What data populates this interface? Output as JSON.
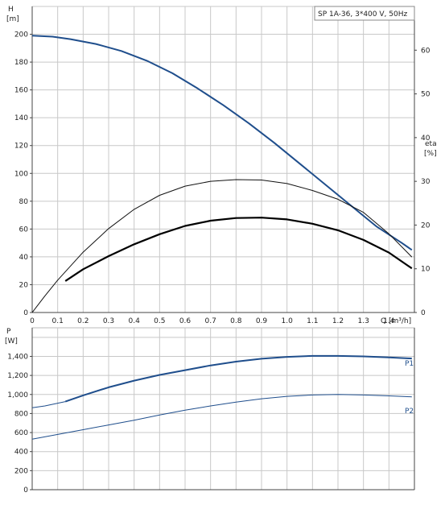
{
  "chart_data": [
    {
      "type": "line",
      "title": "SP 1A-36, 3*400 V, 50Hz",
      "xlabel": "Q [m³/h]",
      "ylabel": [
        "H",
        "[m]"
      ],
      "ylabel_right": [
        "eta",
        "[%]"
      ],
      "xlim": [
        0,
        1.5
      ],
      "ylim": [
        0,
        220
      ],
      "ylim_right": [
        0,
        70
      ],
      "xticks": [
        "0",
        "0.1",
        "0.2",
        "0.3",
        "0.4",
        "0.5",
        "0.6",
        "0.7",
        "0.8",
        "0.9",
        "1.0",
        "1.1",
        "1.2",
        "1.3",
        "1.4"
      ],
      "yticks": [
        "0",
        "20",
        "40",
        "60",
        "80",
        "100",
        "120",
        "140",
        "160",
        "180",
        "200"
      ],
      "yticks_right": [
        "0",
        "10",
        "20",
        "30",
        "40",
        "50",
        "60"
      ],
      "grid": true,
      "series": [
        {
          "axis": "left",
          "color": "#1f4e8c",
          "width": 2,
          "x": [
            0,
            0.08,
            0.15,
            0.25,
            0.35,
            0.45,
            0.55,
            0.65,
            0.75,
            0.85,
            0.95,
            1.05,
            1.15,
            1.25,
            1.35,
            1.45,
            1.49
          ],
          "y": [
            199,
            198.3,
            196.5,
            193,
            188,
            181,
            172,
            161,
            149,
            136,
            122,
            107,
            92,
            77,
            62,
            50,
            45
          ]
        },
        {
          "axis": "right",
          "color": "#111111",
          "width": 1,
          "x": [
            0,
            0.05,
            0.1,
            0.2,
            0.3,
            0.4,
            0.5,
            0.6,
            0.7,
            0.8,
            0.9,
            1.0,
            1.1,
            1.2,
            1.3,
            1.4,
            1.49
          ],
          "y": [
            0,
            3.8,
            7.4,
            13.8,
            19.2,
            23.6,
            26.8,
            28.9,
            30.0,
            30.4,
            30.3,
            29.5,
            27.9,
            25.9,
            22.9,
            18.0,
            12.7
          ]
        },
        {
          "axis": "right",
          "color": "#000000",
          "width": 2.2,
          "x": [
            0.13,
            0.2,
            0.3,
            0.4,
            0.5,
            0.6,
            0.7,
            0.8,
            0.9,
            1.0,
            1.1,
            1.2,
            1.3,
            1.4,
            1.49
          ],
          "y": [
            7.2,
            9.9,
            12.9,
            15.6,
            17.9,
            19.8,
            21.0,
            21.6,
            21.7,
            21.3,
            20.3,
            18.8,
            16.6,
            13.7,
            10.1
          ]
        }
      ]
    },
    {
      "type": "line",
      "ylabel": [
        "P",
        "[W]"
      ],
      "xlim": [
        0,
        1.5
      ],
      "ylim": [
        0,
        1700
      ],
      "yticks": [
        "0",
        "200",
        "400",
        "600",
        "800",
        "1,000",
        "1,200",
        "1,400"
      ],
      "grid": true,
      "series": [
        {
          "name": "P1",
          "color": "#1f4e8c",
          "width": 2,
          "x": [
            0.13,
            0.2,
            0.3,
            0.4,
            0.5,
            0.6,
            0.7,
            0.8,
            0.9,
            1.0,
            1.1,
            1.2,
            1.3,
            1.4,
            1.49
          ],
          "y": [
            925,
            990,
            1075,
            1145,
            1205,
            1255,
            1305,
            1345,
            1375,
            1395,
            1405,
            1405,
            1400,
            1390,
            1378
          ]
        },
        {
          "name": "P1",
          "color": "#1f4e8c",
          "width": 1,
          "x": [
            0,
            0.05,
            0.13
          ],
          "y": [
            860,
            880,
            925
          ]
        },
        {
          "name": "P2",
          "color": "#1f4e8c",
          "width": 1,
          "x": [
            0,
            0.1,
            0.2,
            0.3,
            0.4,
            0.5,
            0.6,
            0.7,
            0.8,
            0.9,
            1.0,
            1.1,
            1.2,
            1.3,
            1.4,
            1.49
          ],
          "y": [
            530,
            580,
            630,
            680,
            730,
            785,
            835,
            880,
            920,
            955,
            980,
            995,
            1000,
            995,
            985,
            975
          ]
        }
      ],
      "series_labels": [
        "P1",
        "P2"
      ]
    }
  ]
}
